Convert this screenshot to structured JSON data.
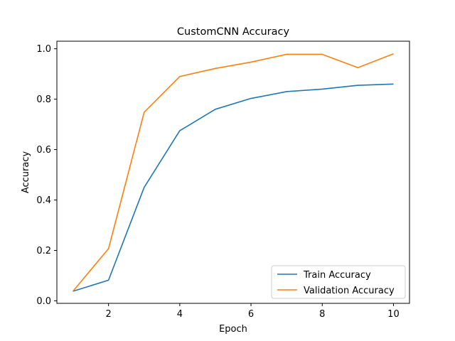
{
  "chart_data": {
    "type": "line",
    "title": "CustomCNN Accuracy",
    "xlabel": "Epoch",
    "ylabel": "Accuracy",
    "xlim": [
      0.55,
      10.45
    ],
    "ylim": [
      -0.01,
      1.03
    ],
    "x_ticks": [
      2,
      4,
      6,
      8,
      10
    ],
    "y_ticks": [
      0.0,
      0.2,
      0.4,
      0.6,
      0.8,
      1.0
    ],
    "grid": false,
    "legend_position": "lower-right",
    "x": [
      1,
      2,
      3,
      4,
      5,
      6,
      7,
      8,
      9,
      10
    ],
    "series": [
      {
        "name": "Train Accuracy",
        "color": "#1f77b4",
        "values": [
          0.038,
          0.082,
          0.45,
          0.675,
          0.76,
          0.803,
          0.83,
          0.84,
          0.855,
          0.86
        ]
      },
      {
        "name": "Validation Accuracy",
        "color": "#ff7f0e",
        "values": [
          0.038,
          0.207,
          0.748,
          0.89,
          0.922,
          0.947,
          0.978,
          0.978,
          0.925,
          0.98
        ]
      }
    ]
  }
}
